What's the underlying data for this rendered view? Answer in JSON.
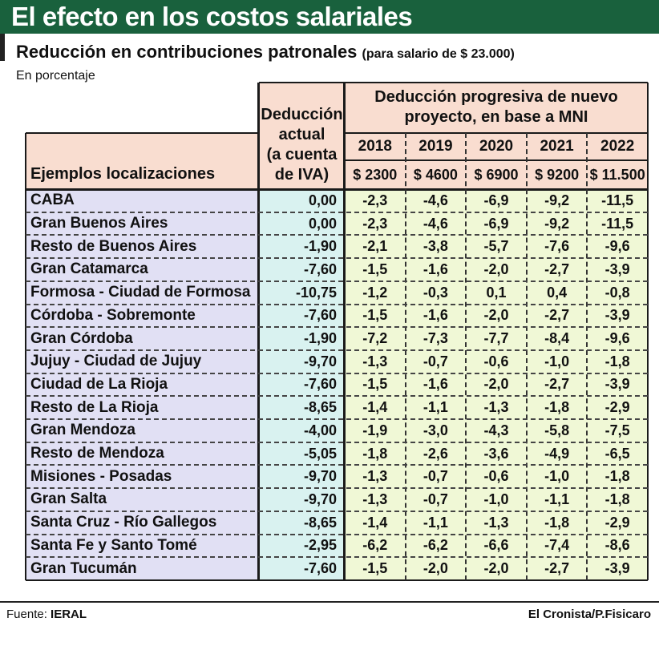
{
  "title": "El efecto en los costos salariales",
  "subtitle": "Reducción en contribuciones patronales",
  "subtitle_note": "(para salario de $ 23.000)",
  "unit_label": "En porcentaje",
  "source_label": "Fuente:",
  "source_name": "IERAL",
  "credit": "El Cronista/P.Fisicaro",
  "colors": {
    "title_bar": "#19613d",
    "header_bg": "#f9ddd0",
    "label_col_bg": "#e1e0f4",
    "actual_col_bg": "#d9f2f0",
    "progressive_bg": "#f0f8d6"
  },
  "chart_data": {
    "type": "table",
    "row_header": "Ejemplos localizaciones",
    "actual_header": "Deducción actual (a cuenta de IVA)",
    "actual_header_lines": [
      "Deducción",
      "actual",
      "(a cuenta",
      "de IVA)"
    ],
    "progressive_header_lines": [
      "Deducción progresiva de nuevo",
      "proyecto, en base a MNI"
    ],
    "years": [
      "2018",
      "2019",
      "2020",
      "2021",
      "2022"
    ],
    "mni": [
      "$ 2300",
      "$ 4600",
      "$ 6900",
      "$ 9200",
      "$ 11.500"
    ],
    "rows": [
      {
        "label": "CABA",
        "actual": "0,00",
        "values": [
          "-2,3",
          "-4,6",
          "-6,9",
          "-9,2",
          "-11,5"
        ]
      },
      {
        "label": "Gran Buenos Aires",
        "actual": "0,00",
        "values": [
          "-2,3",
          "-4,6",
          "-6,9",
          "-9,2",
          "-11,5"
        ]
      },
      {
        "label": "Resto de Buenos Aires",
        "actual": "-1,90",
        "values": [
          "-2,1",
          "-3,8",
          "-5,7",
          "-7,6",
          "-9,6"
        ]
      },
      {
        "label": "Gran Catamarca",
        "actual": "-7,60",
        "values": [
          "-1,5",
          "-1,6",
          "-2,0",
          "-2,7",
          "-3,9"
        ]
      },
      {
        "label": "Formosa - Ciudad de Formosa",
        "actual": "-10,75",
        "values": [
          "-1,2",
          "-0,3",
          "0,1",
          "0,4",
          "-0,8"
        ]
      },
      {
        "label": "Córdoba - Sobremonte",
        "actual": "-7,60",
        "values": [
          "-1,5",
          "-1,6",
          "-2,0",
          "-2,7",
          "-3,9"
        ]
      },
      {
        "label": "Gran Córdoba",
        "actual": "-1,90",
        "values": [
          "-7,2",
          "-7,3",
          "-7,7",
          "-8,4",
          "-9,6"
        ]
      },
      {
        "label": "Jujuy - Ciudad de Jujuy",
        "actual": "-9,70",
        "values": [
          "-1,3",
          "-0,7",
          "-0,6",
          "-1,0",
          "-1,8"
        ]
      },
      {
        "label": "Ciudad de La Rioja",
        "actual": "-7,60",
        "values": [
          "-1,5",
          "-1,6",
          "-2,0",
          "-2,7",
          "-3,9"
        ]
      },
      {
        "label": "Resto de La Rioja",
        "actual": "-8,65",
        "values": [
          "-1,4",
          "-1,1",
          "-1,3",
          "-1,8",
          "-2,9"
        ]
      },
      {
        "label": "Gran Mendoza",
        "actual": "-4,00",
        "values": [
          "-1,9",
          "-3,0",
          "-4,3",
          "-5,8",
          "-7,5"
        ]
      },
      {
        "label": "Resto de Mendoza",
        "actual": "-5,05",
        "values": [
          "-1,8",
          "-2,6",
          "-3,6",
          "-4,9",
          "-6,5"
        ]
      },
      {
        "label": "Misiones - Posadas",
        "actual": "-9,70",
        "values": [
          "-1,3",
          "-0,7",
          "-0,6",
          "-1,0",
          "-1,8"
        ]
      },
      {
        "label": "Gran Salta",
        "actual": "-9,70",
        "values": [
          "-1,3",
          "-0,7",
          "-1,0",
          "-1,1",
          "-1,8"
        ]
      },
      {
        "label": "Santa Cruz - Río Gallegos",
        "actual": "-8,65",
        "values": [
          "-1,4",
          "-1,1",
          "-1,3",
          "-1,8",
          "-2,9"
        ]
      },
      {
        "label": "Santa Fe y Santo Tomé",
        "actual": "-2,95",
        "values": [
          "-6,2",
          "-6,2",
          "-6,6",
          "-7,4",
          "-8,6"
        ]
      },
      {
        "label": "Gran Tucumán",
        "actual": "-7,60",
        "values": [
          "-1,5",
          "-2,0",
          "-2,0",
          "-2,7",
          "-3,9"
        ]
      }
    ]
  }
}
